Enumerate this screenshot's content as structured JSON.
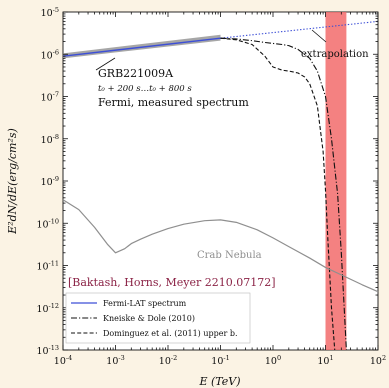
{
  "chart_data": {
    "type": "line",
    "xlabel": "E (TeV)",
    "ylabel": "E²dN/dE(erg/cm²s)",
    "xscale": "log",
    "yscale": "log",
    "xlim": [
      0.0001,
      100
    ],
    "ylim": [
      1e-13,
      1e-05
    ],
    "x_ticks": [
      {
        "value": 0.0001,
        "base": "10",
        "exp": "-4"
      },
      {
        "value": 0.001,
        "base": "10",
        "exp": "-3"
      },
      {
        "value": 0.01,
        "base": "10",
        "exp": "-2"
      },
      {
        "value": 0.1,
        "base": "10",
        "exp": "-1"
      },
      {
        "value": 1,
        "base": "10",
        "exp": "0"
      },
      {
        "value": 10,
        "base": "10",
        "exp": "1"
      },
      {
        "value": 100,
        "base": "10",
        "exp": "2"
      }
    ],
    "y_ticks": [
      {
        "value": 1e-05,
        "base": "10",
        "exp": "-5"
      },
      {
        "value": 1e-06,
        "base": "10",
        "exp": "-6"
      },
      {
        "value": 1e-07,
        "base": "10",
        "exp": "-7"
      },
      {
        "value": 1e-08,
        "base": "10",
        "exp": "-8"
      },
      {
        "value": 1e-09,
        "base": "10",
        "exp": "-9"
      },
      {
        "value": 1e-10,
        "base": "10",
        "exp": "-10"
      },
      {
        "value": 1e-11,
        "base": "10",
        "exp": "-11"
      },
      {
        "value": 1e-12,
        "base": "10",
        "exp": "-12"
      },
      {
        "value": 1e-13,
        "base": "10",
        "exp": "-13"
      }
    ],
    "band": {
      "x": [
        10,
        25
      ],
      "color": "#f26b6b"
    },
    "series": [
      {
        "name": "Fermi-LAT spectrum",
        "color": "#3d4fd6",
        "style": "solid",
        "x": [
          0.0001,
          0.1
        ],
        "y": [
          9e-07,
          2.4e-06
        ],
        "uncertainty_band": {
          "low": [
            8e-07,
            2.1e-06
          ],
          "high": [
            1.05e-06,
            2.9e-06
          ],
          "color": "#9c9c9c"
        }
      },
      {
        "name": "",
        "color": "#3d4fd6",
        "style": "dotted",
        "x": [
          0.1,
          100
        ],
        "y": [
          2.4e-06,
          6e-06
        ]
      },
      {
        "name": "Kneiske & Dole (2010)",
        "color": "#111111",
        "style": "dashdot",
        "x": [
          0.1,
          0.2,
          0.4,
          0.7,
          1,
          1.5,
          2,
          3,
          5,
          7,
          10,
          13,
          17,
          20,
          25
        ],
        "y": [
          2.4e-06,
          2.3e-06,
          2.1e-06,
          1.9e-06,
          1.8e-06,
          1.7e-06,
          1.6e-06,
          1.3e-06,
          8e-07,
          4e-07,
          1e-07,
          1e-08,
          5e-10,
          2e-11,
          1e-13
        ]
      },
      {
        "name": "Dominguez et al. (2011) upper b.",
        "color": "#111111",
        "style": "dashed",
        "x": [
          0.1,
          0.2,
          0.4,
          0.7,
          1,
          1.5,
          2,
          3,
          4,
          5,
          7,
          9,
          10,
          11,
          13,
          15
        ],
        "y": [
          2.4e-06,
          2.2e-06,
          1.7e-06,
          9e-07,
          5e-07,
          4.2e-07,
          4e-07,
          3.6e-07,
          2.9e-07,
          2e-07,
          6e-08,
          5e-09,
          6e-10,
          5e-11,
          1e-12,
          1e-13
        ]
      },
      {
        "name": "Crab Nebula",
        "color": "#8f8f8f",
        "style": "solid",
        "x": [
          0.0001,
          0.0002,
          0.0004,
          0.0007,
          0.001,
          0.0015,
          0.002,
          0.003,
          0.005,
          0.01,
          0.02,
          0.05,
          0.1,
          0.2,
          0.5,
          1,
          2,
          5,
          10,
          20,
          50,
          100
        ],
        "y": [
          3.6e-10,
          2.1e-10,
          8e-11,
          3.2e-11,
          2e-11,
          2.5e-11,
          3.3e-11,
          4.2e-11,
          5.5e-11,
          7.5e-11,
          9.5e-11,
          1.15e-10,
          1.2e-10,
          1.05e-10,
          7e-11,
          4.5e-11,
          2.8e-11,
          1.5e-11,
          9e-12,
          6e-12,
          3.5e-12,
          2.4e-12
        ]
      }
    ],
    "annotations": {
      "grb_title": "GRB221009A",
      "grb_interval": "t₀ + 200 s…t₀ + 800 s",
      "grb_desc": "Fermi, measured spectrum",
      "extrapolation": "extrapolation",
      "crab": "Crab Nebula",
      "reference": "[Baktash, Horns, Meyer 2210.07172]",
      "reference_color": "#8b2346"
    },
    "legend": {
      "placement": "bottom-left",
      "entries": [
        {
          "label": "Fermi-LAT spectrum",
          "color": "#3d4fd6",
          "style": "solid"
        },
        {
          "label": "Kneiske & Dole (2010)",
          "color": "#111111",
          "style": "dashdot"
        },
        {
          "label": "Dominguez et al. (2011) upper b.",
          "color": "#111111",
          "style": "dashed"
        }
      ]
    },
    "grid": false
  }
}
